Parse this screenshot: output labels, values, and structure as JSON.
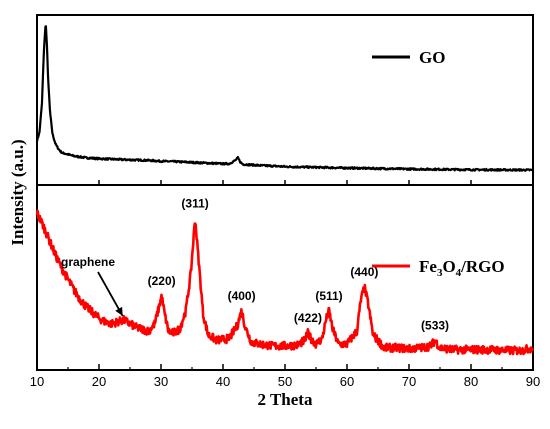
{
  "chart_data": {
    "type": "line",
    "xlabel": "2 Theta",
    "ylabel": "Intensity (a.u.)",
    "xlim": [
      10,
      90
    ],
    "xticks": [
      10,
      20,
      30,
      40,
      50,
      60,
      70,
      80,
      90
    ],
    "legend_placement": "top-right",
    "colors": {
      "GO": "#000000",
      "Fe3O4/RGO": "#ff0000"
    },
    "panels": [
      {
        "name": "top",
        "ylim": [
          0,
          100
        ],
        "series": [
          {
            "name": "GO",
            "x": [
              10,
              10.4,
              10.8,
              11.1,
              11.4,
              11.6,
              11.8,
              12.1,
              12.5,
              13,
              13.5,
              14,
              15,
              16,
              17,
              18,
              20,
              22,
              25,
              28,
              30,
              32,
              35,
              38,
              40,
              41,
              42,
              42.4,
              42.8,
              43.2,
              44,
              46,
              48,
              50,
              55,
              60,
              65,
              70,
              75,
              80,
              85,
              90
            ],
            "y": [
              26,
              31,
              48,
              78,
              96,
              82,
              62,
              43,
              30,
              24,
              21,
              19,
              18,
              17,
              16.5,
              16,
              15.5,
              15.2,
              14.8,
              14.5,
              14,
              13.8,
              13.3,
              12.8,
              12.5,
              12.5,
              14.5,
              16,
              13.5,
              12.2,
              12,
              11.5,
              11.2,
              10.8,
              10.4,
              10.0,
              9.7,
              9.4,
              9.2,
              9.0,
              8.9,
              8.8
            ]
          }
        ],
        "legend": {
          "label_parts": [
            [
              "GO",
              ""
            ]
          ]
        }
      },
      {
        "name": "bottom",
        "ylim": [
          0,
          100
        ],
        "series": [
          {
            "name": "Fe3O4/RGO",
            "x": [
              10,
              11,
              12,
              13,
              14,
              15,
              16,
              17,
              18,
              19,
              20,
              21,
              22,
              23,
              24,
              25,
              26,
              27,
              28,
              29,
              29.6,
              30.1,
              30.6,
              31.2,
              32,
              33,
              34,
              34.8,
              35.5,
              36.1,
              36.8,
              37.6,
              39,
              41,
              42.3,
              43,
              43.6,
              44.6,
              46,
              48,
              50,
              52,
              53.2,
              53.7,
              54.2,
              55,
              56,
              56.6,
              57.1,
              57.7,
              58.6,
              60,
              61.6,
              62.2,
              62.8,
              63.4,
              64.2,
              66,
              68,
              70,
              72,
              73.5,
              74.2,
              75,
              77,
              80,
              83,
              86,
              88,
              90
            ],
            "y": [
              85,
              78,
              70,
              62,
              55,
              49,
              43,
              38,
              34,
              31,
              28,
              26,
              25,
              26,
              27,
              25,
              23,
              22,
              21,
              25,
              33,
              40,
              30,
              21,
              20,
              22,
              32,
              52,
              82,
              58,
              30,
              19,
              16,
              17,
              24,
              32,
              23,
              15,
              14,
              13,
              13,
              13.5,
              16,
              20,
              17,
              14,
              17,
              27,
              32,
              22,
              14,
              14,
              21,
              37,
              45,
              36,
              19,
              12,
              12,
              11.5,
              12,
              13,
              16,
              12,
              11,
              11,
              11,
              10.5,
              10.5,
              12
            ]
          }
        ],
        "legend": {
          "label_parts": [
            [
              "Fe",
              ""
            ],
            [
              "3",
              "sub"
            ],
            [
              "O",
              ""
            ],
            [
              "4",
              "sub"
            ],
            [
              "/RGO",
              ""
            ]
          ]
        }
      }
    ],
    "annotations": [
      {
        "text": "graphene",
        "x": 24.3,
        "y": 26,
        "arrow": true
      },
      {
        "text": "(220)",
        "x": 30.1,
        "y": 40
      },
      {
        "text": "(311)",
        "x": 35.5,
        "y": 82
      },
      {
        "text": "(400)",
        "x": 43.0,
        "y": 32
      },
      {
        "text": "(422)",
        "x": 53.7,
        "y": 20
      },
      {
        "text": "(511)",
        "x": 57.1,
        "y": 32
      },
      {
        "text": "(440)",
        "x": 62.8,
        "y": 45
      },
      {
        "text": "(533)",
        "x": 74.2,
        "y": 16
      }
    ]
  }
}
